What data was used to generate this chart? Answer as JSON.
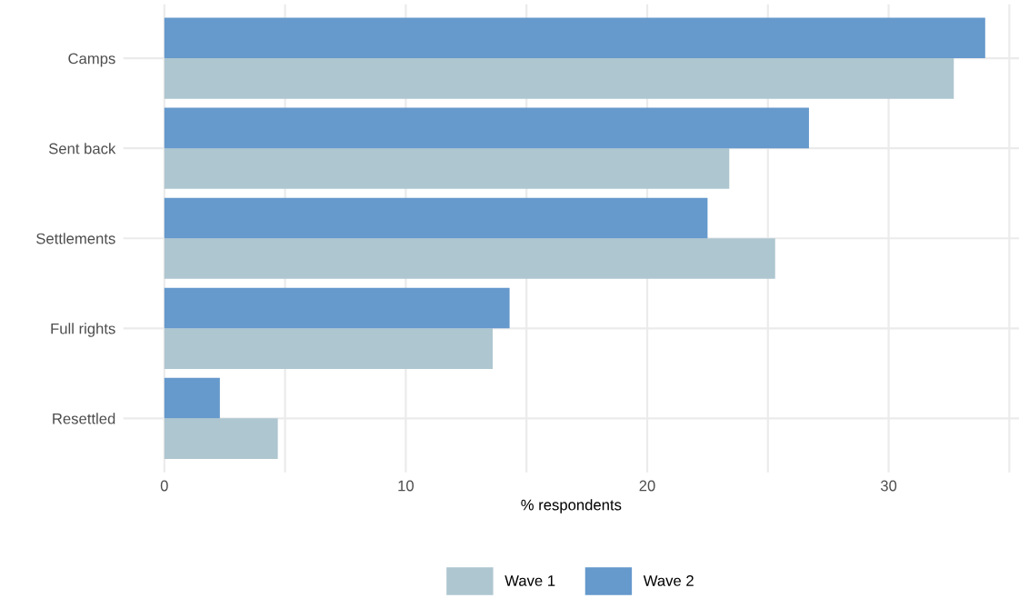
{
  "chart_data": {
    "type": "bar",
    "orientation": "horizontal",
    "xlabel": "% respondents",
    "categories": [
      "Camps",
      "Sent back",
      "Settlements",
      "Full rights",
      "Resettled"
    ],
    "series": [
      {
        "name": "Wave 1",
        "color": "#aec6cf",
        "values": [
          32.7,
          23.4,
          25.3,
          13.6,
          4.7
        ]
      },
      {
        "name": "Wave 2",
        "color": "#6699cc",
        "values": [
          34.0,
          26.7,
          22.5,
          14.3,
          2.3
        ]
      }
    ],
    "xlim": [
      -1.7,
      35.4
    ],
    "xticks": [
      0,
      {
        "value": 5,
        "label": null
      },
      10,
      {
        "value": 15,
        "label": null
      },
      20,
      {
        "value": 25,
        "label": null
      },
      30,
      {
        "value": 35,
        "label": null
      }
    ],
    "grid": true,
    "legend": "bottom"
  }
}
